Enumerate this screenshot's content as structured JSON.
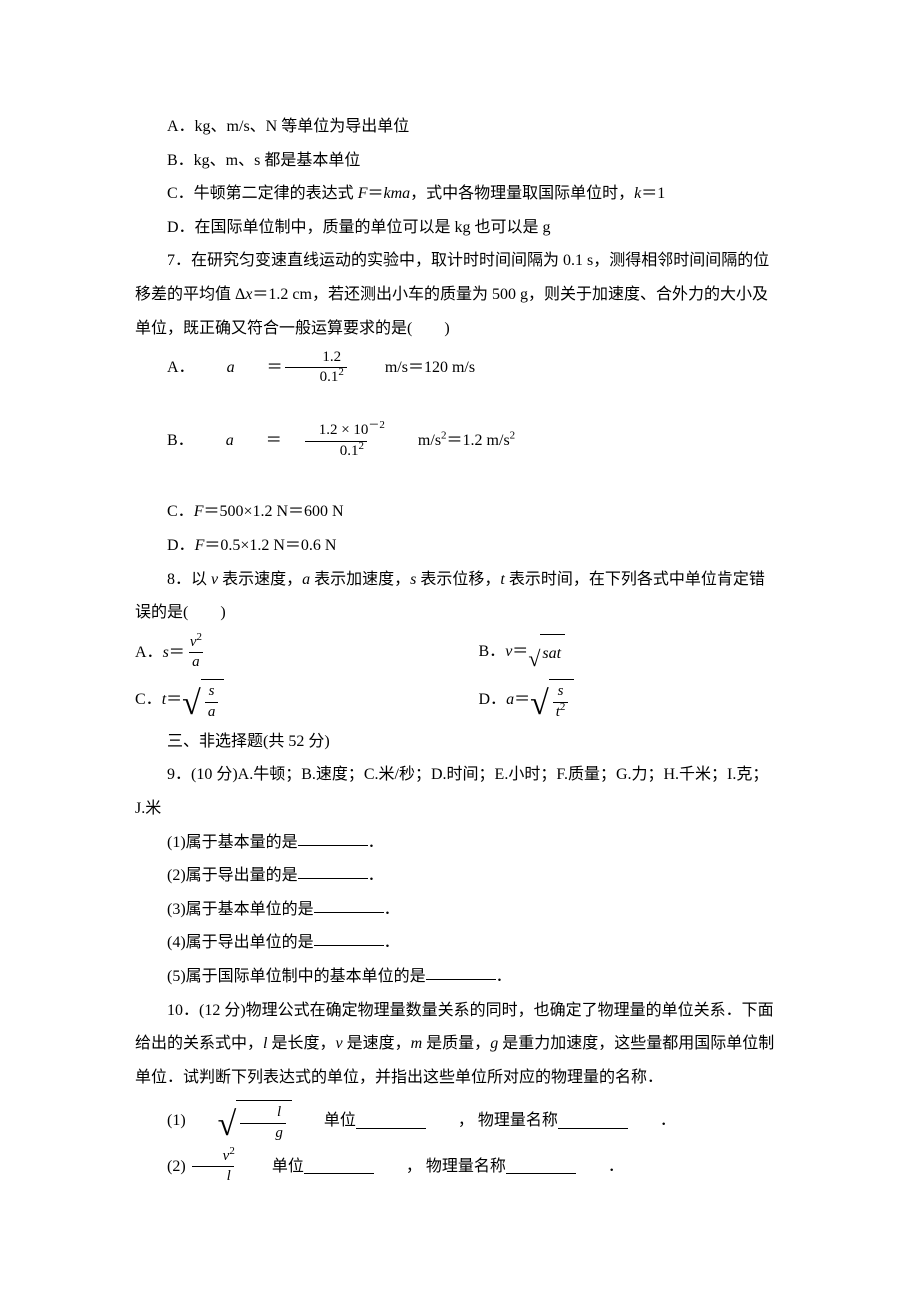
{
  "q6": {
    "A": "A．kg、m/s、N 等单位为导出单位",
    "B": "B．kg、m、s 都是基本单位",
    "C_pre": "C．牛顿第二定律的表达式 ",
    "C_F": "F",
    "C_eq": "＝",
    "C_kma": "kma",
    "C_post": "，式中各物理量取国际单位时，",
    "C_k": "k",
    "C_eq1": "＝1",
    "D": "D．在国际单位制中，质量的单位可以是 kg 也可以是 g"
  },
  "q7": {
    "stem1": "7．在研究匀变速直线运动的实验中，取计时时间间隔为 0.1 s，测得相邻时间间隔的位",
    "stem2_pre": "移差的平均值 Δ",
    "stem2_x": "x",
    "stem2_mid": "＝1.2 cm，若还测出小车的质量为 500 g，则关于加速度、合外力的大小及",
    "stem3": "单位，既正确又符合一般运算要求的是(　　)",
    "A_lead": "A．",
    "A_a": "a",
    "A_eq": "＝",
    "A_num": "1.2",
    "A_den_pre": "0.1",
    "A_den_sup": "2",
    "A_tail": " m/s＝120 m/s",
    "B_lead": "B．",
    "B_a": "a",
    "B_eq": "＝",
    "B_num": "1.2 × 10",
    "B_num_sup": "－2",
    "B_den_pre": "0.1",
    "B_den_sup": "2",
    "B_tail_pre": " m/s",
    "B_tail_sup": "2",
    "B_tail_post": "＝1.2 m/s",
    "B_tail_sup2": "2",
    "C_pre": "C．",
    "C_F": "F",
    "C_post": "＝500×1.2 N＝600 N",
    "D_pre": "D．",
    "D_F": "F",
    "D_post": "＝0.5×1.2 N＝0.6 N"
  },
  "q8": {
    "stem1_pre": "8．以 ",
    "stem1_v": "v",
    "stem1_m1": " 表示速度，",
    "stem1_a": "a",
    "stem1_m2": " 表示加速度，",
    "stem1_s": "s",
    "stem1_m3": " 表示位移，",
    "stem1_t": "t",
    "stem1_m4": " 表示时间，在下列各式中单位肯定错",
    "stem2": "误的是(　　)",
    "A_lead": "A．",
    "A_s": "s",
    "A_eq": "＝",
    "A_num": "v",
    "A_num_sup": "2",
    "A_den": "a",
    "B_lead": "B．",
    "B_v": "v",
    "B_eq": "＝",
    "B_rad": "sat",
    "C_lead": "C．",
    "C_t": "t",
    "C_eq": "＝",
    "C_num": "s",
    "C_den": "a",
    "D_lead": "D．",
    "D_a": "a",
    "D_eq": "＝",
    "D_num": "s",
    "D_den": "t",
    "D_den_sup": "2"
  },
  "sec3": "三、非选择题(共 52 分)",
  "q9": {
    "stem1": "9．(10 分)A.牛顿；B.速度；C.米/秒；D.时间；E.小时；F.质量；G.力；H.千米；I.克；",
    "stem2": "J.米",
    "p1": "(1)属于基本量的是",
    "p2": "(2)属于导出量的是",
    "p3": "(3)属于基本单位的是",
    "p4": "(4)属于导出单位的是",
    "p5": "(5)属于国际单位制中的基本单位的是",
    "dot": "．"
  },
  "q10": {
    "stem1": "10．(12 分)物理公式在确定物理量数量关系的同时，也确定了物理量的单位关系．下面",
    "stem2_pre": "给出的关系式中，",
    "stem2_l": "l",
    "stem2_m1": " 是长度，",
    "stem2_v": "v",
    "stem2_m2": " 是速度，",
    "stem2_m": "m",
    "stem2_m3": " 是质量，",
    "stem2_g": "g",
    "stem2_m4": " 是重力加速度，这些量都用国际单位制",
    "stem3": "单位．试判断下列表达式的单位，并指出这些单位所对应的物理量的名称．",
    "p1_lead": "(1) ",
    "p1_num": "l",
    "p1_den": "g",
    "p1_unit": "单位",
    "p1_comma": "， 物理量名称",
    "p2_lead": "(2)",
    "p2_num": "v",
    "p2_num_sup": "2",
    "p2_den": "l",
    "p2_unit": "单位",
    "p2_comma": "， 物理量名称"
  }
}
